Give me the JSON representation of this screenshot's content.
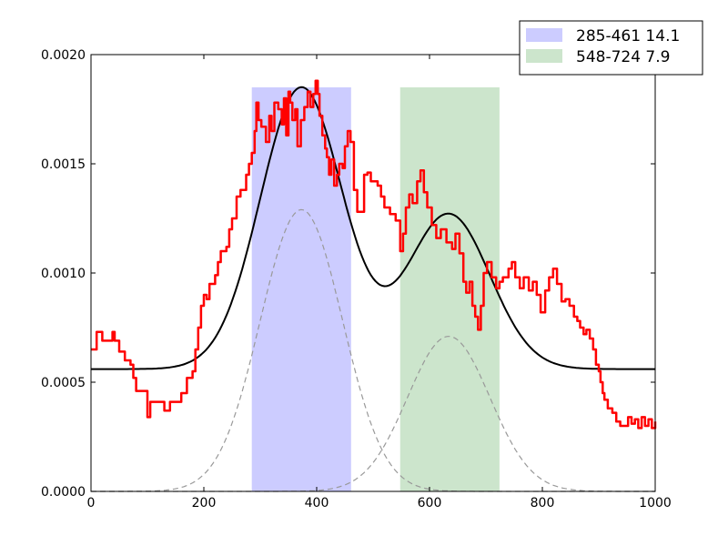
{
  "chart_data": {
    "type": "line",
    "title": "",
    "xlabel": "",
    "ylabel": "",
    "xlim": [
      0,
      1000
    ],
    "ylim": [
      0,
      0.002
    ],
    "x_ticks": [
      0,
      200,
      400,
      600,
      800,
      1000
    ],
    "x_tick_labels": [
      "0",
      "200",
      "400",
      "600",
      "800",
      "1000"
    ],
    "y_ticks": [
      0,
      0.0005,
      0.001,
      0.0015,
      0.002
    ],
    "y_tick_labels": [
      "0.0000",
      "0.0005",
      "0.0010",
      "0.0015",
      "0.0020"
    ],
    "grid": false,
    "legend_position": "top-right",
    "bands": [
      {
        "label": "285-461 14.1",
        "x0": 285,
        "x1": 461,
        "y_top": 0.00185,
        "color": "#ccccff"
      },
      {
        "label": "548-724 7.9",
        "x0": 548,
        "x1": 724,
        "y_top": 0.00185,
        "color": "#cce5cc"
      }
    ],
    "series": [
      {
        "kind": "data",
        "color": "#ff0000",
        "style": "solid",
        "points": [
          [
            0,
            0.00065
          ],
          [
            10,
            0.00073
          ],
          [
            20,
            0.00069
          ],
          [
            30,
            0.00069
          ],
          [
            38,
            0.00073
          ],
          [
            42,
            0.00069
          ],
          [
            50,
            0.00064
          ],
          [
            60,
            0.0006
          ],
          [
            70,
            0.00058
          ],
          [
            75,
            0.00052
          ],
          [
            80,
            0.00046
          ],
          [
            95,
            0.00046
          ],
          [
            100,
            0.00034
          ],
          [
            105,
            0.00041
          ],
          [
            120,
            0.00041
          ],
          [
            130,
            0.00037
          ],
          [
            140,
            0.00041
          ],
          [
            160,
            0.00045
          ],
          [
            170,
            0.00052
          ],
          [
            180,
            0.00055
          ],
          [
            185,
            0.00065
          ],
          [
            190,
            0.00075
          ],
          [
            195,
            0.00085
          ],
          [
            200,
            0.0009
          ],
          [
            205,
            0.00088
          ],
          [
            210,
            0.00095
          ],
          [
            220,
            0.00099
          ],
          [
            225,
            0.00105
          ],
          [
            230,
            0.0011
          ],
          [
            240,
            0.00112
          ],
          [
            245,
            0.0012
          ],
          [
            250,
            0.00125
          ],
          [
            258,
            0.00135
          ],
          [
            265,
            0.00138
          ],
          [
            275,
            0.00145
          ],
          [
            280,
            0.0015
          ],
          [
            285,
            0.00155
          ],
          [
            290,
            0.00165
          ],
          [
            293,
            0.00178
          ],
          [
            297,
            0.0017
          ],
          [
            302,
            0.00167
          ],
          [
            310,
            0.0016
          ],
          [
            316,
            0.00172
          ],
          [
            320,
            0.00165
          ],
          [
            325,
            0.00178
          ],
          [
            332,
            0.00175
          ],
          [
            338,
            0.00168
          ],
          [
            342,
            0.0018
          ],
          [
            346,
            0.00163
          ],
          [
            350,
            0.00183
          ],
          [
            353,
            0.00178
          ],
          [
            357,
            0.0017
          ],
          [
            362,
            0.00175
          ],
          [
            366,
            0.00158
          ],
          [
            372,
            0.0017
          ],
          [
            378,
            0.00176
          ],
          [
            384,
            0.00183
          ],
          [
            389,
            0.00176
          ],
          [
            394,
            0.00182
          ],
          [
            398,
            0.00188
          ],
          [
            402,
            0.00182
          ],
          [
            405,
            0.00172
          ],
          [
            410,
            0.00163
          ],
          [
            415,
            0.00157
          ],
          [
            418,
            0.00153
          ],
          [
            422,
            0.00145
          ],
          [
            426,
            0.00152
          ],
          [
            431,
            0.0014
          ],
          [
            436,
            0.00145
          ],
          [
            440,
            0.0015
          ],
          [
            446,
            0.00148
          ],
          [
            450,
            0.00158
          ],
          [
            455,
            0.00165
          ],
          [
            460,
            0.0016
          ],
          [
            466,
            0.00138
          ],
          [
            472,
            0.00128
          ],
          [
            478,
            0.00128
          ],
          [
            484,
            0.00145
          ],
          [
            490,
            0.00146
          ],
          [
            496,
            0.00142
          ],
          [
            502,
            0.00142
          ],
          [
            508,
            0.0014
          ],
          [
            514,
            0.00135
          ],
          [
            520,
            0.0013
          ],
          [
            530,
            0.00127
          ],
          [
            540,
            0.00124
          ],
          [
            548,
            0.0011
          ],
          [
            553,
            0.00118
          ],
          [
            558,
            0.0013
          ],
          [
            564,
            0.00136
          ],
          [
            570,
            0.00132
          ],
          [
            578,
            0.00142
          ],
          [
            584,
            0.00147
          ],
          [
            590,
            0.00137
          ],
          [
            596,
            0.0013
          ],
          [
            604,
            0.00122
          ],
          [
            612,
            0.00116
          ],
          [
            620,
            0.0012
          ],
          [
            630,
            0.00114
          ],
          [
            640,
            0.00111
          ],
          [
            646,
            0.00118
          ],
          [
            653,
            0.00109
          ],
          [
            660,
            0.00096
          ],
          [
            665,
            0.00091
          ],
          [
            671,
            0.00096
          ],
          [
            676,
            0.00085
          ],
          [
            681,
            0.0008
          ],
          [
            686,
            0.00074
          ],
          [
            691,
            0.00085
          ],
          [
            696,
            0.001
          ],
          [
            702,
            0.00105
          ],
          [
            710,
            0.00098
          ],
          [
            718,
            0.00093
          ],
          [
            724,
            0.00096
          ],
          [
            730,
            0.00098
          ],
          [
            740,
            0.00102
          ],
          [
            746,
            0.00105
          ],
          [
            752,
            0.00098
          ],
          [
            760,
            0.00093
          ],
          [
            767,
            0.00098
          ],
          [
            776,
            0.00092
          ],
          [
            783,
            0.00096
          ],
          [
            790,
            0.0009
          ],
          [
            797,
            0.00082
          ],
          [
            805,
            0.00092
          ],
          [
            812,
            0.00098
          ],
          [
            819,
            0.00102
          ],
          [
            826,
            0.00095
          ],
          [
            834,
            0.00087
          ],
          [
            841,
            0.00088
          ],
          [
            848,
            0.00085
          ],
          [
            856,
            0.0008
          ],
          [
            862,
            0.00078
          ],
          [
            867,
            0.00075
          ],
          [
            873,
            0.00072
          ],
          [
            878,
            0.00074
          ],
          [
            884,
            0.0007
          ],
          [
            890,
            0.00065
          ],
          [
            895,
            0.00058
          ],
          [
            900,
            0.00055
          ],
          [
            903,
            0.0005
          ],
          [
            907,
            0.00045
          ],
          [
            910,
            0.00042
          ],
          [
            916,
            0.00038
          ],
          [
            924,
            0.00036
          ],
          [
            931,
            0.00032
          ],
          [
            938,
            0.0003
          ],
          [
            945,
            0.0003
          ],
          [
            952,
            0.00034
          ],
          [
            958,
            0.00031
          ],
          [
            964,
            0.00033
          ],
          [
            970,
            0.00029
          ],
          [
            976,
            0.00034
          ],
          [
            982,
            0.0003
          ],
          [
            988,
            0.00033
          ],
          [
            994,
            0.00029
          ],
          [
            1000,
            0.00032
          ]
        ]
      },
      {
        "kind": "fit",
        "color": "#000000",
        "style": "solid",
        "baseline": 0.00056,
        "components": [
          {
            "amplitude": 0.00129,
            "center": 373,
            "sigma": 73
          },
          {
            "amplitude": 0.00071,
            "center": 634,
            "sigma": 73
          }
        ]
      },
      {
        "kind": "component",
        "color": "#999999",
        "style": "dashed",
        "amplitude": 0.00129,
        "center": 373,
        "sigma": 73
      },
      {
        "kind": "component",
        "color": "#999999",
        "style": "dashed",
        "amplitude": 0.00071,
        "center": 634,
        "sigma": 73
      }
    ]
  }
}
